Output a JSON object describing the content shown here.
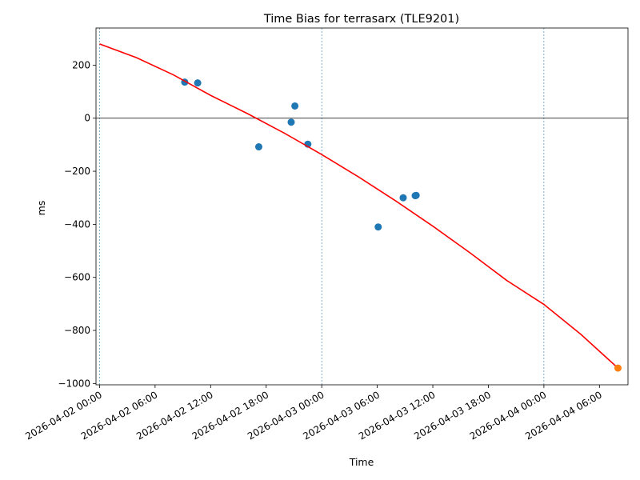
{
  "chart_data": {
    "type": "scatter",
    "title": "Time Bias for terrasarx (TLE9201)",
    "xlabel": "Time",
    "ylabel": "ms",
    "x_axis_type": "datetime",
    "xlim": [
      "2026-04-01 23:37",
      "2026-04-04 09:05"
    ],
    "ylim": [
      -1005,
      340
    ],
    "grid": false,
    "legend": null,
    "x_tick_labels": [
      "2026-04-02 00:00",
      "2026-04-02 06:00",
      "2026-04-02 12:00",
      "2026-04-02 18:00",
      "2026-04-03 00:00",
      "2026-04-03 06:00",
      "2026-04-03 12:00",
      "2026-04-03 18:00",
      "2026-04-04 00:00",
      "2026-04-04 06:00"
    ],
    "y_ticks": [
      200,
      0,
      -200,
      -400,
      -600,
      -800,
      -1000
    ],
    "y_tick_labels": [
      "200",
      "0",
      "−200",
      "−400",
      "−600",
      "−800",
      "−1000"
    ],
    "vertical_lines": [
      "2026-04-02 00:00",
      "2026-04-03 00:00",
      "2026-04-04 00:00"
    ],
    "horizontal_lines": [
      0
    ],
    "series": [
      {
        "kind": "scatter",
        "color": "#1f77b4",
        "points": [
          {
            "x": "2026-04-02 09:12",
            "y": 136
          },
          {
            "x": "2026-04-02 10:36",
            "y": 133
          },
          {
            "x": "2026-04-02 17:12",
            "y": -108
          },
          {
            "x": "2026-04-02 20:42",
            "y": -15
          },
          {
            "x": "2026-04-02 21:06",
            "y": 46
          },
          {
            "x": "2026-04-02 22:30",
            "y": -98
          },
          {
            "x": "2026-04-03 06:06",
            "y": -410
          },
          {
            "x": "2026-04-03 08:48",
            "y": -300
          },
          {
            "x": "2026-04-03 10:06",
            "y": -292
          },
          {
            "x": "2026-04-03 10:12",
            "y": -291
          }
        ]
      },
      {
        "kind": "line",
        "color": "#ff0000",
        "points": [
          {
            "x": "2026-04-02 00:00",
            "y": 280
          },
          {
            "x": "2026-04-02 04:00",
            "y": 228
          },
          {
            "x": "2026-04-02 08:00",
            "y": 163
          },
          {
            "x": "2026-04-02 12:00",
            "y": 86
          },
          {
            "x": "2026-04-02 16:00",
            "y": 17
          },
          {
            "x": "2026-04-02 20:00",
            "y": -57
          },
          {
            "x": "2026-04-03 00:00",
            "y": -137
          },
          {
            "x": "2026-04-03 04:00",
            "y": -222
          },
          {
            "x": "2026-04-03 08:00",
            "y": -312
          },
          {
            "x": "2026-04-03 12:00",
            "y": -407
          },
          {
            "x": "2026-04-03 16:00",
            "y": -507
          },
          {
            "x": "2026-04-03 20:00",
            "y": -612
          },
          {
            "x": "2026-04-04 00:00",
            "y": -702
          },
          {
            "x": "2026-04-04 04:00",
            "y": -815
          },
          {
            "x": "2026-04-04 08:00",
            "y": -942
          }
        ]
      },
      {
        "kind": "scatter",
        "color": "#ff7f0e",
        "points": [
          {
            "x": "2026-04-04 08:00",
            "y": -942
          }
        ]
      }
    ]
  }
}
